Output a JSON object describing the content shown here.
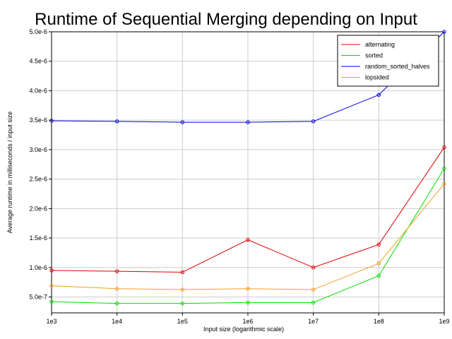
{
  "chart_data": {
    "type": "line",
    "title": "Runtime of Sequential Merging depending on Input",
    "xlabel": "Input size (logarithmic scale)",
    "ylabel": "Average runtime in milliseconds / input size",
    "x_scale": "log",
    "categories": [
      "1e3",
      "1e4",
      "1e5",
      "1e6",
      "1e7",
      "1e8",
      "1e9"
    ],
    "yticks": [
      {
        "value": 5e-07,
        "label": "5.0e-7"
      },
      {
        "value": 1e-06,
        "label": "1.0e-6"
      },
      {
        "value": 1.5e-06,
        "label": "1.5e-6"
      },
      {
        "value": 2e-06,
        "label": "2.0e-6"
      },
      {
        "value": 2.5e-06,
        "label": "2.5e-6"
      },
      {
        "value": 3e-06,
        "label": "3.0e-6"
      },
      {
        "value": 3.5e-06,
        "label": "3.5e-6"
      },
      {
        "value": 4e-06,
        "label": "4.0e-6"
      },
      {
        "value": 4.5e-06,
        "label": "4.5e-6"
      },
      {
        "value": 5e-06,
        "label": "5.0e-6"
      }
    ],
    "ylim": [
      2.3e-07,
      5e-06
    ],
    "grid": true,
    "legend_position": "top-right",
    "series": [
      {
        "name": "alternating",
        "color": "#e00000",
        "values": [
          9.5e-07,
          9.35e-07,
          9.2e-07,
          1.47e-06,
          1e-06,
          1.39e-06,
          3.04e-06
        ]
      },
      {
        "name": "sorted",
        "color": "#00dd00",
        "values": [
          4.2e-07,
          3.9e-07,
          3.9e-07,
          4.05e-07,
          4.05e-07,
          8.6e-07,
          2.68e-06
        ]
      },
      {
        "name": "random_sorted_halves",
        "color": "#0000dd",
        "values": [
          3.49e-06,
          3.48e-06,
          3.465e-06,
          3.465e-06,
          3.48e-06,
          3.93e-06,
          5e-06
        ]
      },
      {
        "name": "lopsided",
        "color": "#f0a020",
        "values": [
          6.9e-07,
          6.4e-07,
          6.25e-07,
          6.4e-07,
          6.25e-07,
          1.07e-06,
          2.42e-06
        ]
      }
    ]
  }
}
